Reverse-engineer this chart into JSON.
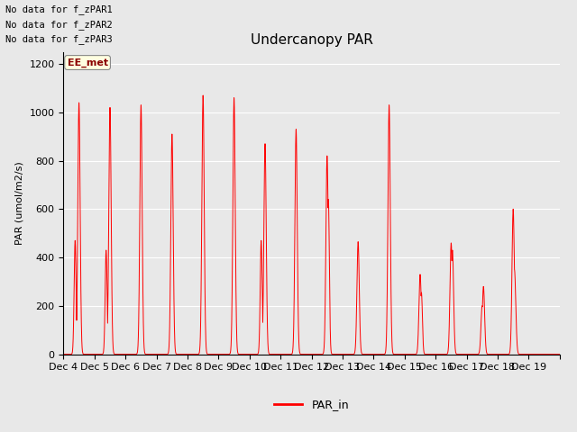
{
  "title": "Undercanopy PAR",
  "ylabel": "PAR (umol/m2/s)",
  "legend_label": "PAR_in",
  "line_color": "#FF0000",
  "bg_color": "#E8E8E8",
  "fig_bg_color": "#E8E8E8",
  "ylim": [
    0,
    1250
  ],
  "yticks": [
    0,
    200,
    400,
    600,
    800,
    1000,
    1200
  ],
  "annotations": [
    "No data for f_zPAR1",
    "No data for f_zPAR2",
    "No data for f_zPAR3"
  ],
  "ee_met_label": "EE_met",
  "days": [
    "Dec 4",
    "Dec 5",
    "Dec 6",
    "Dec 7",
    "Dec 8",
    "Dec 9",
    "Dec 10",
    "Dec 11",
    "Dec 12",
    "Dec 13",
    "Dec 14",
    "Dec 15",
    "Dec 16",
    "Dec 17",
    "Dec 18",
    "Dec 19"
  ],
  "n_days": 16,
  "samples_per_day": 288,
  "day_peaks": [
    1040,
    1020,
    1030,
    910,
    1070,
    1060,
    870,
    930,
    820,
    465,
    1030,
    330,
    460,
    200,
    600,
    0
  ],
  "day_sigma": [
    1.8,
    1.8,
    1.8,
    1.8,
    1.8,
    1.8,
    1.8,
    1.8,
    1.8,
    1.8,
    1.8,
    1.8,
    1.8,
    1.8,
    1.8,
    1.8
  ],
  "shoulders": {
    "0": [
      18,
      470,
      1.5
    ],
    "1": [
      18,
      430,
      1.5
    ],
    "6": [
      18,
      470,
      1.5
    ],
    "8": [
      26,
      640,
      1.5
    ],
    "9": [
      26,
      130,
      1.2
    ],
    "10": [
      26,
      180,
      1.2
    ],
    "11": [
      26,
      255,
      1.5
    ],
    "12": [
      26,
      430,
      1.8
    ],
    "13": [
      26,
      280,
      1.8
    ],
    "14": [
      26,
      350,
      2.0
    ]
  }
}
